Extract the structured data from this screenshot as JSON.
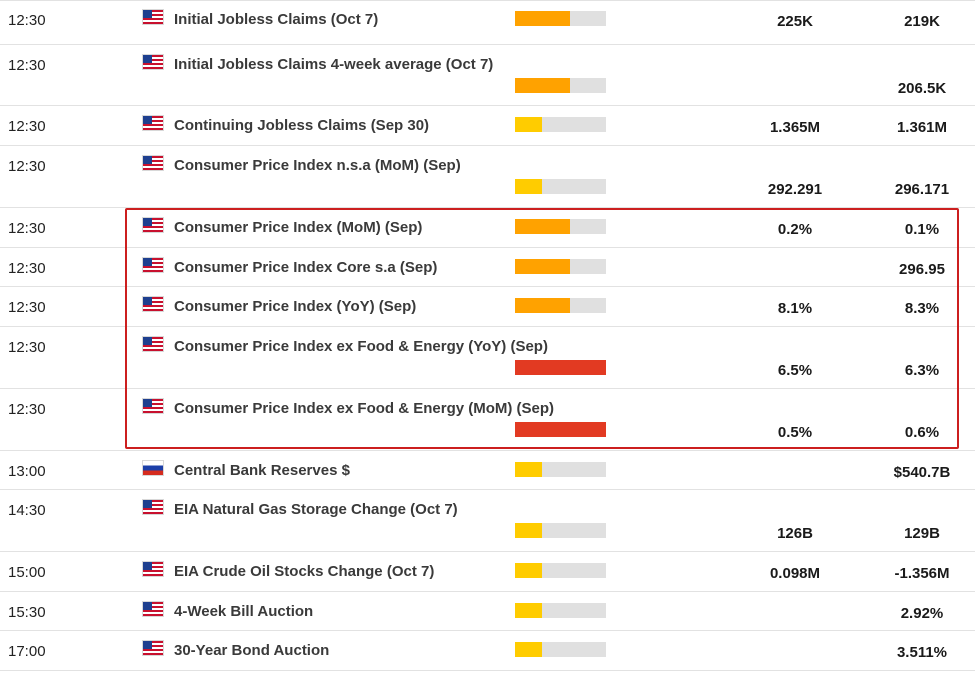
{
  "colors": {
    "impact_low": "#ffcc00",
    "impact_medium": "#ffa200",
    "impact_high": "#e23a22",
    "bar_track": "#e0e0e0",
    "highlight_border": "#cc1f1f"
  },
  "events": [
    {
      "time": "12:30",
      "country": "us",
      "flag_icon": "us-flag-icon",
      "name": "Initial Jobless Claims (Oct 7)",
      "impact": "medium",
      "impact_level": 0.6,
      "actual": "225K",
      "forecast": "219K",
      "two_line": false
    },
    {
      "time": "12:30",
      "country": "us",
      "flag_icon": "us-flag-icon",
      "name": "Initial Jobless Claims 4-week average (Oct 7)",
      "impact": "medium",
      "impact_level": 0.6,
      "actual": "",
      "forecast": "206.5K",
      "two_line": true
    },
    {
      "time": "12:30",
      "country": "us",
      "flag_icon": "us-flag-icon",
      "name": "Continuing Jobless Claims (Sep 30)",
      "impact": "low",
      "impact_level": 0.3,
      "actual": "1.365M",
      "forecast": "1.361M",
      "two_line": false
    },
    {
      "time": "12:30",
      "country": "us",
      "flag_icon": "us-flag-icon",
      "name": "Consumer Price Index n.s.a (MoM) (Sep)",
      "impact": "low",
      "impact_level": 0.3,
      "actual": "292.291",
      "forecast": "296.171",
      "two_line": true
    },
    {
      "time": "12:30",
      "country": "us",
      "flag_icon": "us-flag-icon",
      "name": "Consumer Price Index (MoM) (Sep)",
      "impact": "medium",
      "impact_level": 0.6,
      "actual": "0.2%",
      "forecast": "0.1%",
      "two_line": false
    },
    {
      "time": "12:30",
      "country": "us",
      "flag_icon": "us-flag-icon",
      "name": "Consumer Price Index Core s.a (Sep)",
      "impact": "medium",
      "impact_level": 0.6,
      "actual": "",
      "forecast": "296.95",
      "two_line": false
    },
    {
      "time": "12:30",
      "country": "us",
      "flag_icon": "us-flag-icon",
      "name": "Consumer Price Index (YoY) (Sep)",
      "impact": "medium",
      "impact_level": 0.6,
      "actual": "8.1%",
      "forecast": "8.3%",
      "two_line": false
    },
    {
      "time": "12:30",
      "country": "us",
      "flag_icon": "us-flag-icon",
      "name": "Consumer Price Index ex Food & Energy (YoY) (Sep)",
      "impact": "high",
      "impact_level": 1.0,
      "actual": "6.5%",
      "forecast": "6.3%",
      "two_line": true
    },
    {
      "time": "12:30",
      "country": "us",
      "flag_icon": "us-flag-icon",
      "name": "Consumer Price Index ex Food & Energy (MoM) (Sep)",
      "impact": "high",
      "impact_level": 1.0,
      "actual": "0.5%",
      "forecast": "0.6%",
      "two_line": true
    },
    {
      "time": "13:00",
      "country": "ru",
      "flag_icon": "russia-flag-icon",
      "name": "Central Bank Reserves $",
      "impact": "low",
      "impact_level": 0.3,
      "actual": "",
      "forecast": "$540.7B",
      "two_line": false
    },
    {
      "time": "14:30",
      "country": "us",
      "flag_icon": "us-flag-icon",
      "name": "EIA Natural Gas Storage Change (Oct 7)",
      "impact": "low",
      "impact_level": 0.3,
      "actual": "126B",
      "forecast": "129B",
      "two_line": true
    },
    {
      "time": "15:00",
      "country": "us",
      "flag_icon": "us-flag-icon",
      "name": "EIA Crude Oil Stocks Change (Oct 7)",
      "impact": "low",
      "impact_level": 0.3,
      "actual": "0.098M",
      "forecast": "-1.356M",
      "two_line": false
    },
    {
      "time": "15:30",
      "country": "us",
      "flag_icon": "us-flag-icon",
      "name": "4-Week Bill Auction",
      "impact": "low",
      "impact_level": 0.3,
      "actual": "",
      "forecast": "2.92%",
      "two_line": false
    },
    {
      "time": "17:00",
      "country": "us",
      "flag_icon": "us-flag-icon",
      "name": "30-Year Bond Auction",
      "impact": "low",
      "impact_level": 0.3,
      "actual": "",
      "forecast": "3.511%",
      "two_line": false
    }
  ],
  "highlight": {
    "from_row": 4,
    "to_row": 8
  }
}
